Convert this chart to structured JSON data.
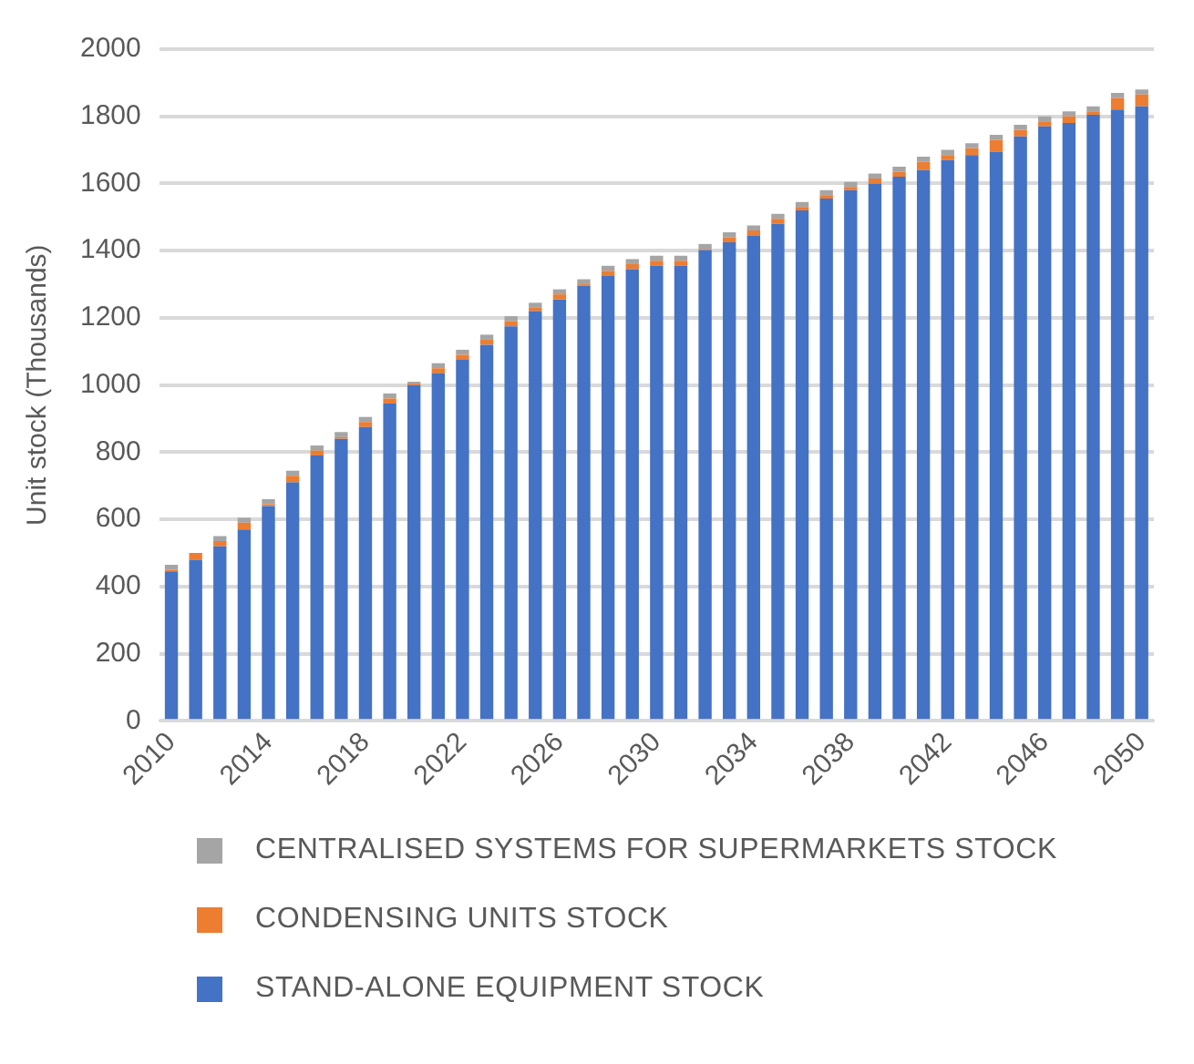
{
  "chart_data": {
    "type": "bar",
    "stacked": true,
    "ylabel": "Unit stock (Thousands)",
    "categories": [
      "2010",
      null,
      null,
      null,
      "2014",
      null,
      null,
      null,
      "2018",
      null,
      null,
      null,
      "2022",
      null,
      null,
      null,
      "2026",
      null,
      null,
      null,
      "2030",
      null,
      null,
      null,
      "2034",
      null,
      null,
      null,
      "2038",
      null,
      null,
      null,
      "2042",
      null,
      null,
      null,
      "2046",
      null,
      null,
      null,
      "2050"
    ],
    "series": [
      {
        "name": "STAND-ALONE EQUIPMENT STOCK",
        "color": "#4472c4",
        "values": [
          445,
          480,
          520,
          570,
          640,
          710,
          790,
          840,
          875,
          945,
          1000,
          1035,
          1075,
          1120,
          1175,
          1220,
          1255,
          1295,
          1325,
          1345,
          1355,
          1355,
          1402,
          1425,
          1445,
          1480,
          1520,
          1555,
          1580,
          1600,
          1620,
          1640,
          1670,
          1685,
          1695,
          1740,
          1770,
          1780,
          1805,
          1820,
          1830
        ]
      },
      {
        "name": "CONDENSING UNITS STOCK",
        "color": "#ed7d31",
        "values": [
          5,
          20,
          15,
          20,
          5,
          20,
          15,
          5,
          15,
          15,
          5,
          15,
          15,
          15,
          15,
          10,
          15,
          5,
          15,
          15,
          15,
          15,
          3,
          15,
          15,
          15,
          10,
          10,
          10,
          15,
          15,
          25,
          15,
          20,
          35,
          20,
          15,
          20,
          10,
          35,
          35
        ]
      },
      {
        "name": "CENTRALISED SYSTEMS FOR SUPERMARKETS STOCK",
        "color": "#a5a5a5",
        "values": [
          15,
          0,
          15,
          15,
          15,
          15,
          15,
          15,
          15,
          15,
          5,
          15,
          15,
          15,
          15,
          15,
          15,
          15,
          15,
          15,
          15,
          15,
          15,
          15,
          15,
          15,
          15,
          15,
          15,
          15,
          15,
          15,
          15,
          15,
          15,
          15,
          15,
          15,
          15,
          15,
          15
        ]
      }
    ],
    "ylim": [
      0,
      2000
    ],
    "yticks": [
      0,
      200,
      400,
      600,
      800,
      1000,
      1200,
      1400,
      1600,
      1800,
      2000
    ],
    "grid": "y",
    "legend": "bottom"
  }
}
